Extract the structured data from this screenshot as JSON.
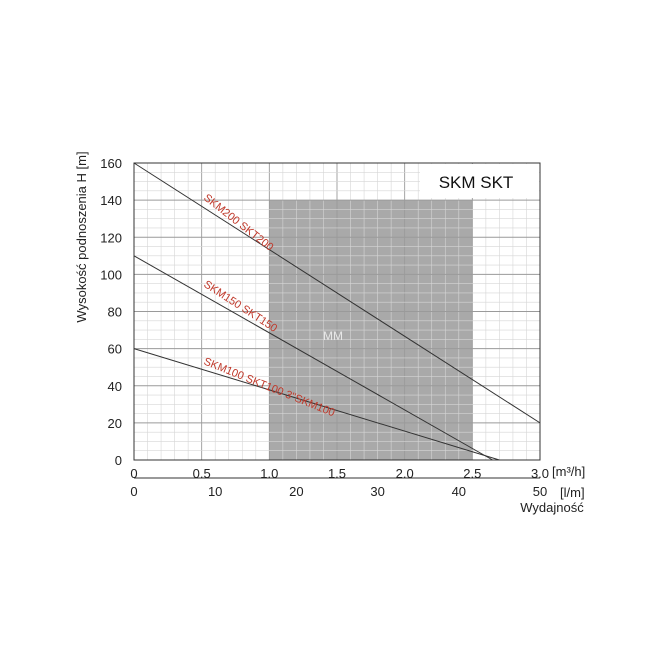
{
  "chart_data": {
    "type": "line",
    "title": "SKM SKT",
    "watermark": "MM",
    "ylabel": "Wysokość podnoszenia H [m]",
    "xlabel": "Wydajność",
    "x_unit_primary": "[m³/h]",
    "x_unit_secondary": "[l/m]",
    "xlim": [
      0,
      3.0
    ],
    "ylim": [
      0,
      160
    ],
    "x_ticks_primary": [
      "0",
      "0.5",
      "1.0",
      "1.5",
      "2.0",
      "2.5",
      "3.0"
    ],
    "x_ticks_secondary": [
      "0",
      "10",
      "20",
      "30",
      "40",
      "50"
    ],
    "y_ticks": [
      "0",
      "20",
      "40",
      "60",
      "80",
      "100",
      "120",
      "140",
      "160"
    ],
    "grid": true,
    "shaded_region": {
      "x": [
        1.0,
        2.5
      ],
      "y": [
        0,
        140
      ]
    },
    "series": [
      {
        "name": "SKM200 SKT200",
        "x": [
          0,
          3.0
        ],
        "y": [
          160,
          20
        ]
      },
      {
        "name": "SKM150 SKT150",
        "x": [
          0,
          2.65
        ],
        "y": [
          110,
          0
        ]
      },
      {
        "name": "SKM100 SKT100   3\"SKM100",
        "x": [
          0,
          2.7
        ],
        "y": [
          60,
          0
        ]
      }
    ]
  }
}
